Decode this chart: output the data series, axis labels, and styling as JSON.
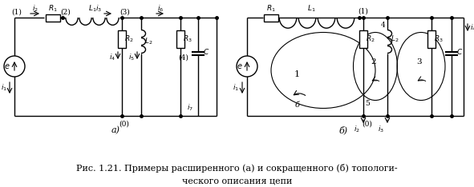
{
  "fig_width": 5.91,
  "fig_height": 2.34,
  "bg_color": "#ffffff",
  "line_color": "#000000",
  "caption_line1": "Рис. 1.21. Примеры расширенного (а) и сокращенного (б) топологи-",
  "caption_line2": "ческого описания цепи",
  "caption_fontsize": 8.0
}
